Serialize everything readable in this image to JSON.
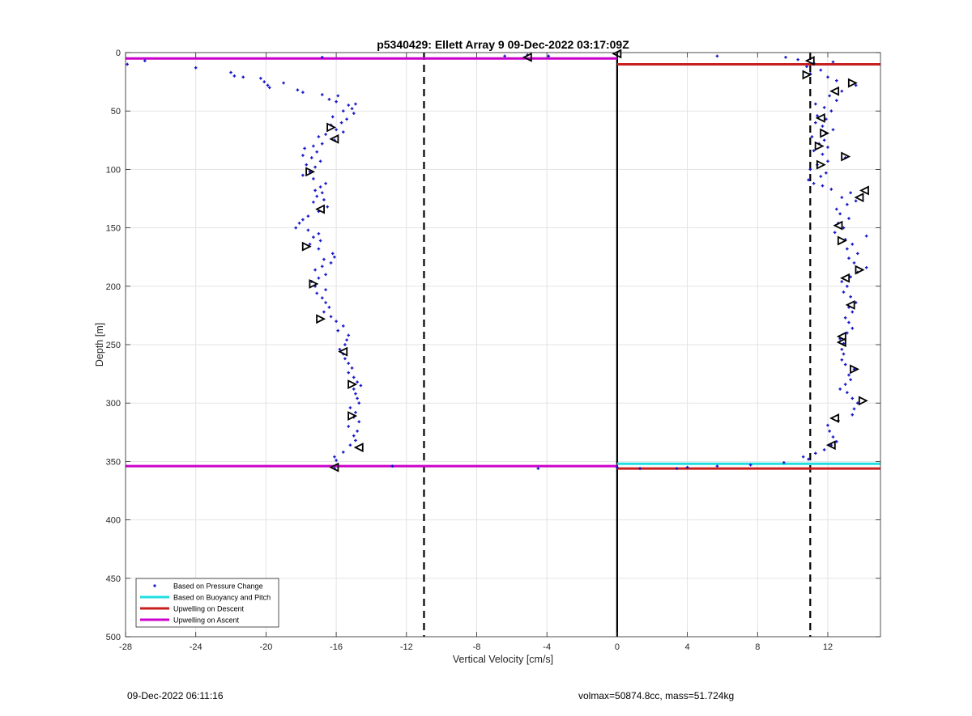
{
  "chart_data": {
    "type": "scatter",
    "title": "p5340429: Ellett Array 9 09-Dec-2022 03:17:09Z",
    "xlabel": "Vertical Velocity [cm/s]",
    "ylabel": "Depth [m]",
    "xlim": [
      -28,
      15
    ],
    "ylim": [
      0,
      500
    ],
    "y_reversed": true,
    "grid": true,
    "legend_position": "bottom-left",
    "xticks": [
      -28,
      -24,
      -20,
      -16,
      -12,
      -8,
      -4,
      0,
      4,
      8,
      12
    ],
    "xtick_labels": [
      "-28",
      "-24",
      "-20",
      "-16",
      "-12",
      "-8",
      "-4",
      "0",
      "4",
      "8",
      "12"
    ],
    "yticks": [
      0,
      50,
      100,
      150,
      200,
      250,
      300,
      350,
      400,
      450,
      500
    ],
    "ytick_labels": [
      "0",
      "50",
      "100",
      "150",
      "200",
      "250",
      "300",
      "350",
      "400",
      "450",
      "500"
    ],
    "colors": {
      "points": "#1414c8",
      "buoyancy": "#22dde0",
      "descent": "#c81e1e",
      "ascent": "#cc00cc",
      "reference": "#000000"
    },
    "legend": [
      {
        "label": "Based on Pressure Change",
        "kind": "point",
        "color": "#1414c8"
      },
      {
        "label": "Based on Buoyancy and Pitch",
        "kind": "line",
        "color": "#22dde0"
      },
      {
        "label": "Upwelling on Descent",
        "kind": "line",
        "color": "#c81e1e"
      },
      {
        "label": "Upwelling on Ascent",
        "kind": "line",
        "color": "#cc00cc"
      }
    ],
    "reference_lines": [
      {
        "x": 0,
        "style": "solid"
      },
      {
        "x": -11,
        "style": "dashed"
      },
      {
        "x": 11,
        "style": "dashed"
      }
    ],
    "horizontal_lines": [
      {
        "name": "Upwelling on Ascent",
        "y": 5,
        "x_from": -28,
        "x_to": 0,
        "color": "#cc00cc"
      },
      {
        "name": "Upwelling on Ascent",
        "y": 354,
        "x_from": -28,
        "x_to": 0,
        "color": "#cc00cc"
      },
      {
        "name": "Upwelling on Descent",
        "y": 10,
        "x_from": 0,
        "x_to": 15,
        "color": "#c81e1e"
      },
      {
        "name": "Upwelling on Descent",
        "y": 356,
        "x_from": 0,
        "x_to": 15,
        "color": "#c81e1e"
      },
      {
        "name": "Based on Buoyancy and Pitch",
        "y": 352,
        "x_from": 0,
        "x_to": 15,
        "color": "#22dde0"
      }
    ],
    "series": [
      {
        "name": "Based on Pressure Change",
        "marker": "point",
        "points": [
          [
            -27.9,
            10
          ],
          [
            -26.9,
            7
          ],
          [
            -24.0,
            13
          ],
          [
            -22.0,
            17
          ],
          [
            -21.8,
            20
          ],
          [
            -21.3,
            21
          ],
          [
            -20.3,
            22
          ],
          [
            -20.1,
            25
          ],
          [
            -19.9,
            28
          ],
          [
            -19.8,
            30
          ],
          [
            -19.0,
            26
          ],
          [
            -18.2,
            32
          ],
          [
            -17.9,
            34
          ],
          [
            -16.8,
            36
          ],
          [
            -16.4,
            40
          ],
          [
            -15.9,
            37
          ],
          [
            -16.0,
            42
          ],
          [
            -15.3,
            45
          ],
          [
            -14.9,
            44
          ],
          [
            -15.1,
            48
          ],
          [
            -15.6,
            50
          ],
          [
            -15.0,
            52
          ],
          [
            -16.2,
            55
          ],
          [
            -15.4,
            57
          ],
          [
            -15.7,
            60
          ],
          [
            -16.3,
            62
          ],
          [
            -16.0,
            66
          ],
          [
            -15.6,
            68
          ],
          [
            -16.6,
            70
          ],
          [
            -17.0,
            72
          ],
          [
            -16.1,
            75
          ],
          [
            -16.8,
            78
          ],
          [
            -17.3,
            80
          ],
          [
            -17.8,
            82
          ],
          [
            -17.1,
            85
          ],
          [
            -17.9,
            88
          ],
          [
            -17.4,
            90
          ],
          [
            -16.9,
            93
          ],
          [
            -17.7,
            96
          ],
          [
            -17.2,
            98
          ],
          [
            -17.5,
            102
          ],
          [
            -17.9,
            105
          ],
          [
            -17.3,
            108
          ],
          [
            -16.6,
            112
          ],
          [
            -16.9,
            115
          ],
          [
            -17.2,
            118
          ],
          [
            -16.8,
            120
          ],
          [
            -17.1,
            123
          ],
          [
            -16.7,
            126
          ],
          [
            -17.3,
            128
          ],
          [
            -16.5,
            132
          ],
          [
            -17.0,
            136
          ],
          [
            -17.6,
            140
          ],
          [
            -17.9,
            143
          ],
          [
            -18.1,
            146
          ],
          [
            -18.3,
            150
          ],
          [
            -17.6,
            152
          ],
          [
            -17.0,
            155
          ],
          [
            -17.3,
            158
          ],
          [
            -16.9,
            161
          ],
          [
            -17.5,
            164
          ],
          [
            -17.0,
            168
          ],
          [
            -16.2,
            172
          ],
          [
            -16.1,
            175
          ],
          [
            -16.7,
            177
          ],
          [
            -16.3,
            180
          ],
          [
            -16.8,
            183
          ],
          [
            -17.2,
            186
          ],
          [
            -16.6,
            190
          ],
          [
            -17.0,
            193
          ],
          [
            -17.4,
            196
          ],
          [
            -17.2,
            200
          ],
          [
            -16.6,
            203
          ],
          [
            -17.1,
            206
          ],
          [
            -16.8,
            210
          ],
          [
            -16.6,
            214
          ],
          [
            -16.4,
            218
          ],
          [
            -16.7,
            222
          ],
          [
            -16.3,
            226
          ],
          [
            -16.0,
            230
          ],
          [
            -15.6,
            234
          ],
          [
            -15.9,
            238
          ],
          [
            -15.3,
            242
          ],
          [
            -15.4,
            246
          ],
          [
            -15.5,
            250
          ],
          [
            -15.8,
            254
          ],
          [
            -15.6,
            258
          ],
          [
            -15.5,
            262
          ],
          [
            -15.3,
            266
          ],
          [
            -15.1,
            270
          ],
          [
            -15.3,
            274
          ],
          [
            -15.0,
            278
          ],
          [
            -14.8,
            282
          ],
          [
            -14.6,
            285
          ],
          [
            -15.0,
            288
          ],
          [
            -14.9,
            292
          ],
          [
            -14.8,
            296
          ],
          [
            -14.7,
            300
          ],
          [
            -15.2,
            304
          ],
          [
            -14.9,
            308
          ],
          [
            -15.0,
            312
          ],
          [
            -14.7,
            316
          ],
          [
            -15.3,
            320
          ],
          [
            -14.8,
            324
          ],
          [
            -15.0,
            328
          ],
          [
            -14.9,
            332
          ],
          [
            -15.2,
            336
          ],
          [
            -15.6,
            342
          ],
          [
            -16.1,
            346
          ],
          [
            -16.0,
            349
          ],
          [
            -12.8,
            354
          ],
          [
            -16.1,
            356
          ],
          [
            -16.8,
            4
          ],
          [
            -6.4,
            3
          ],
          [
            -5.1,
            2
          ],
          [
            -3.9,
            3
          ],
          [
            -4.5,
            356
          ],
          [
            0.0,
            355
          ],
          [
            1.3,
            356
          ],
          [
            3.4,
            356
          ],
          [
            4.0,
            355
          ],
          [
            5.7,
            354
          ],
          [
            7.6,
            353
          ],
          [
            9.5,
            351
          ],
          [
            10.9,
            348
          ],
          [
            10.6,
            346
          ],
          [
            11.3,
            343
          ],
          [
            11.8,
            340
          ],
          [
            12.2,
            336
          ],
          [
            12.5,
            333
          ],
          [
            12.3,
            329
          ],
          [
            12.1,
            324
          ],
          [
            12.0,
            319
          ],
          [
            12.6,
            315
          ],
          [
            13.4,
            310
          ],
          [
            13.5,
            305
          ],
          [
            13.7,
            300
          ],
          [
            13.4,
            296
          ],
          [
            13.1,
            291
          ],
          [
            12.7,
            288
          ],
          [
            13.0,
            284
          ],
          [
            13.3,
            280
          ],
          [
            13.2,
            276
          ],
          [
            13.5,
            271
          ],
          [
            13.0,
            267
          ],
          [
            12.8,
            263
          ],
          [
            12.9,
            258
          ],
          [
            12.8,
            254
          ],
          [
            12.9,
            249
          ],
          [
            12.7,
            245
          ],
          [
            13.1,
            240
          ],
          [
            13.4,
            236
          ],
          [
            13.2,
            231
          ],
          [
            13.0,
            227
          ],
          [
            13.4,
            222
          ],
          [
            13.2,
            218
          ],
          [
            13.6,
            214
          ],
          [
            13.3,
            209
          ],
          [
            12.9,
            205
          ],
          [
            13.1,
            200
          ],
          [
            12.8,
            196
          ],
          [
            13.3,
            192
          ],
          [
            13.7,
            188
          ],
          [
            14.2,
            184
          ],
          [
            13.5,
            180
          ],
          [
            13.2,
            176
          ],
          [
            13.7,
            172
          ],
          [
            13.1,
            168
          ],
          [
            13.4,
            164
          ],
          [
            13.0,
            160
          ],
          [
            14.2,
            157
          ],
          [
            12.4,
            154
          ],
          [
            12.9,
            150
          ],
          [
            12.6,
            146
          ],
          [
            13.2,
            142
          ],
          [
            12.7,
            138
          ],
          [
            12.5,
            134
          ],
          [
            13.1,
            130
          ],
          [
            13.6,
            127
          ],
          [
            12.8,
            124
          ],
          [
            13.3,
            120
          ],
          [
            12.2,
            117
          ],
          [
            11.7,
            114
          ],
          [
            11.2,
            112
          ],
          [
            10.9,
            109
          ],
          [
            11.6,
            106
          ],
          [
            11.9,
            103
          ],
          [
            11.0,
            100
          ],
          [
            11.4,
            96
          ],
          [
            12.0,
            93
          ],
          [
            13.0,
            90
          ],
          [
            11.7,
            87
          ],
          [
            11.2,
            84
          ],
          [
            12.0,
            81
          ],
          [
            11.5,
            78
          ],
          [
            11.8,
            75
          ],
          [
            11.1,
            72
          ],
          [
            11.9,
            69
          ],
          [
            12.3,
            66
          ],
          [
            11.7,
            63
          ],
          [
            11.3,
            60
          ],
          [
            11.9,
            57
          ],
          [
            11.4,
            54
          ],
          [
            12.2,
            50
          ],
          [
            11.8,
            47
          ],
          [
            11.3,
            44
          ],
          [
            12.5,
            41
          ],
          [
            12.1,
            37
          ],
          [
            12.8,
            33
          ],
          [
            13.6,
            28
          ],
          [
            12.5,
            24
          ],
          [
            12.0,
            21
          ],
          [
            11.0,
            18
          ],
          [
            11.6,
            15
          ],
          [
            10.8,
            12
          ],
          [
            11.2,
            9
          ],
          [
            10.3,
            6
          ],
          [
            9.6,
            4
          ],
          [
            5.7,
            3
          ],
          [
            12.3,
            8
          ]
        ]
      },
      {
        "name": "Based on Pressure Change (triangle markers)",
        "marker": "triangle",
        "points": [
          [
            -5.1,
            4,
            "left"
          ],
          [
            0.0,
            1,
            "left"
          ],
          [
            -16.3,
            64,
            "right"
          ],
          [
            -16.1,
            74,
            "left"
          ],
          [
            -17.5,
            102,
            "right"
          ],
          [
            -16.9,
            134,
            "left"
          ],
          [
            -17.7,
            166,
            "right"
          ],
          [
            -17.3,
            198,
            "right"
          ],
          [
            -16.9,
            228,
            "right"
          ],
          [
            -15.6,
            256,
            "left"
          ],
          [
            -15.1,
            284,
            "right"
          ],
          [
            -15.1,
            311,
            "right"
          ],
          [
            -14.7,
            338,
            "left"
          ],
          [
            -16.1,
            355,
            "left"
          ],
          [
            11.0,
            7,
            "left"
          ],
          [
            10.8,
            19,
            "right"
          ],
          [
            13.4,
            26,
            "right"
          ],
          [
            12.4,
            33,
            "left"
          ],
          [
            11.6,
            56,
            "left"
          ],
          [
            11.8,
            69,
            "right"
          ],
          [
            11.5,
            80,
            "right"
          ],
          [
            13.0,
            89,
            "right"
          ],
          [
            11.6,
            96,
            "right"
          ],
          [
            14.1,
            118,
            "left"
          ],
          [
            13.8,
            124,
            "left"
          ],
          [
            12.6,
            148,
            "left"
          ],
          [
            12.8,
            161,
            "right"
          ],
          [
            13.8,
            186,
            "right"
          ],
          [
            13.0,
            193,
            "left"
          ],
          [
            13.3,
            216,
            "left"
          ],
          [
            12.8,
            243,
            "left"
          ],
          [
            12.8,
            248,
            "left"
          ],
          [
            13.5,
            271,
            "right"
          ],
          [
            14.0,
            298,
            "right"
          ],
          [
            12.4,
            313,
            "left"
          ],
          [
            12.2,
            336,
            "left"
          ]
        ]
      }
    ]
  },
  "footer": {
    "datetime": "09-Dec-2022 06:11:16",
    "specs": "volmax=50874.8cc, mass=51.724kg"
  }
}
